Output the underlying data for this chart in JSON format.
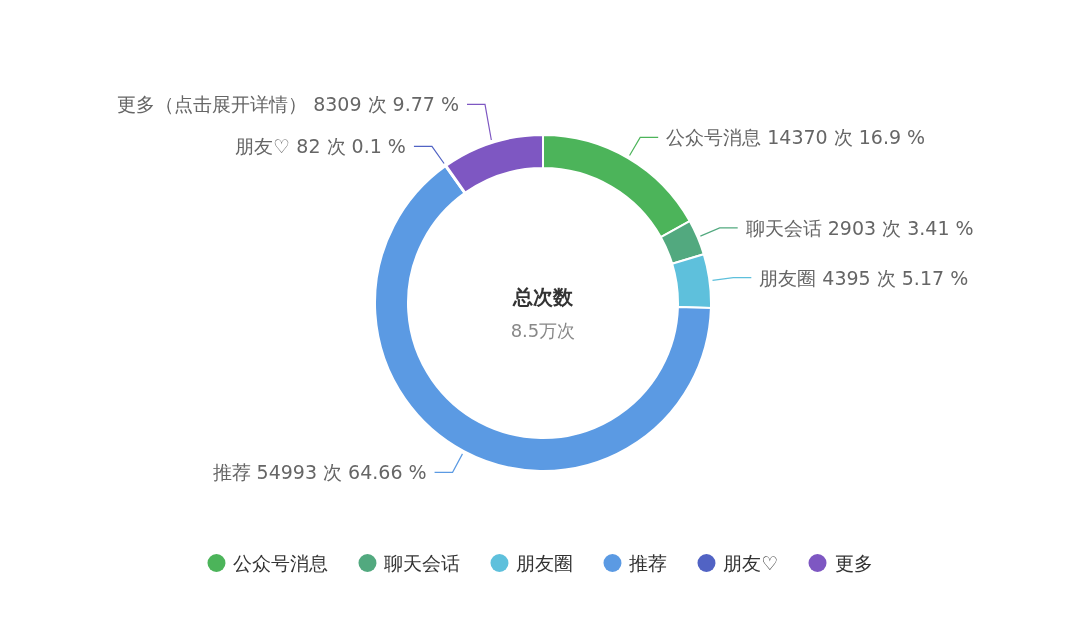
{
  "chart_data": {
    "type": "donut",
    "title": "总次数",
    "subtitle": "8.5万次",
    "categories": [
      "公众号消息",
      "聊天会话",
      "朋友圈",
      "推荐",
      "朋友♡",
      "更多"
    ],
    "values": [
      14370,
      2903,
      4395,
      54993,
      82,
      8309
    ],
    "value_labels": [
      "公众号消息 14370 次 16.9 %",
      "聊天会话 2903 次 3.41 %",
      "朋友圈 4395 次 5.17 %",
      "推荐 54993 次 64.66 %",
      "朋友♡ 82 次 0.1 %",
      "更多（点击展开详情） 8309 次 9.77 %"
    ],
    "colors": [
      "#4cb45a",
      "#52a97f",
      "#5ec0dc",
      "#5b9ae3",
      "#5163c4",
      "#7e57c2"
    ],
    "legend": "bottom"
  }
}
